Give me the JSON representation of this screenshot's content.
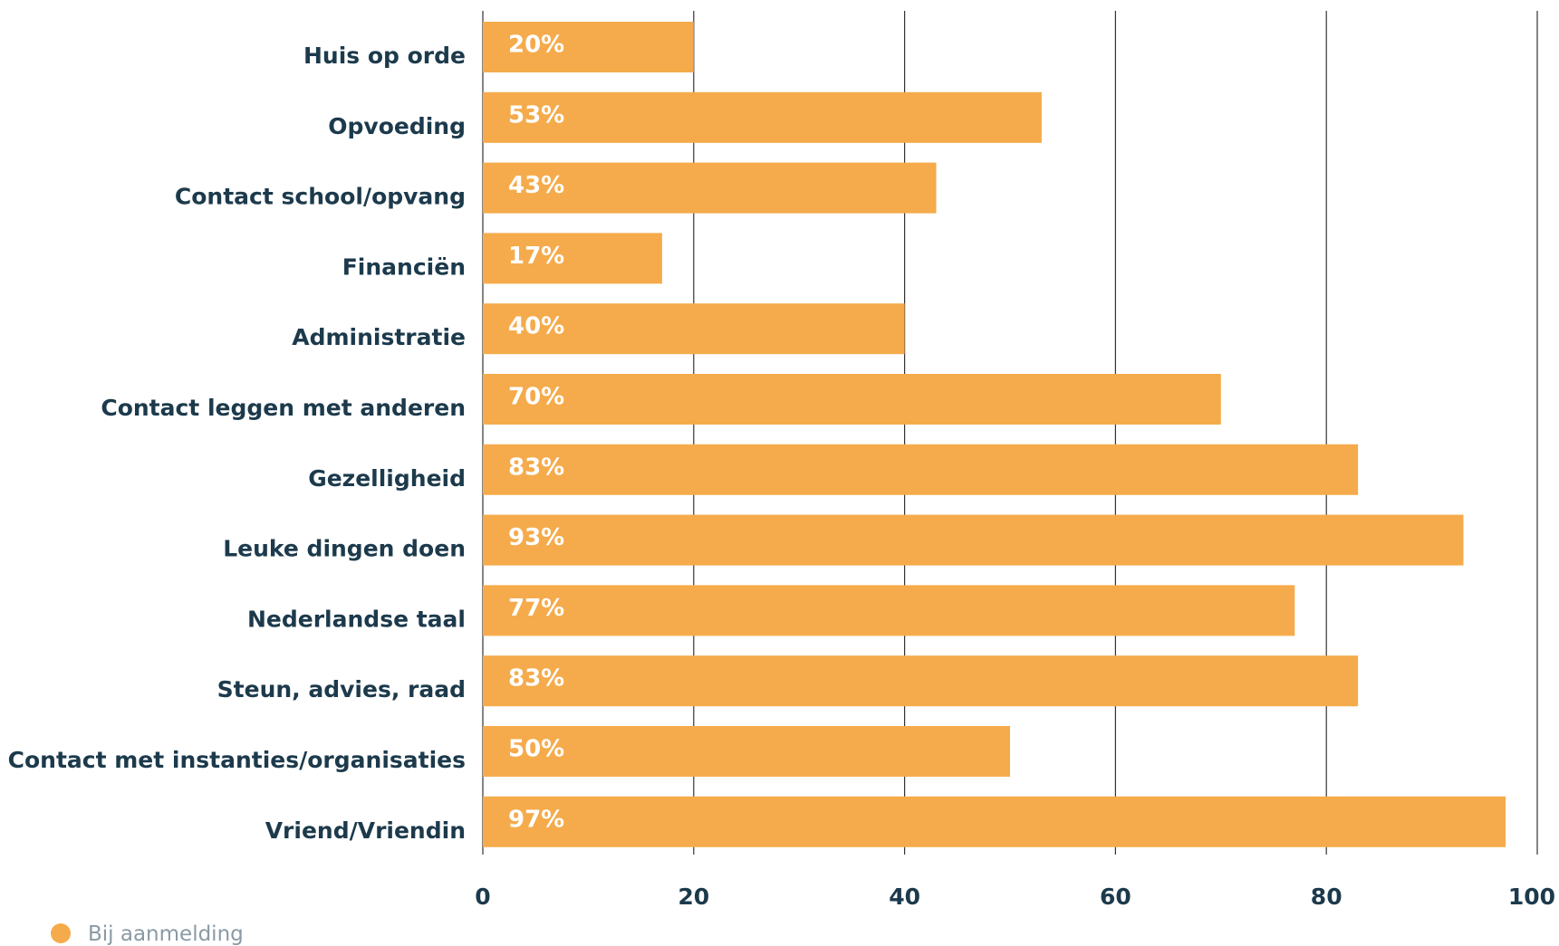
{
  "colors": {
    "bar": "#f5ab4b",
    "label_text": "#1c3a4c",
    "bar_text": "#ffffff",
    "grid": "#333333",
    "legend_text": "#8a9aa4"
  },
  "chart_data": {
    "type": "bar",
    "orientation": "horizontal",
    "categories": [
      "Huis op orde",
      "Opvoeding",
      "Contact school/opvang",
      "Financiën",
      "Administratie",
      "Contact leggen met anderen",
      "Gezelligheid",
      "Leuke dingen doen",
      "Nederlandse taal",
      "Steun, advies, raad",
      "Contact met instanties/organisaties",
      "Vriend/Vriendin"
    ],
    "series": [
      {
        "name": "Bij aanmelding",
        "values": [
          20,
          53,
          43,
          17,
          40,
          70,
          83,
          93,
          77,
          83,
          50,
          97
        ],
        "data_labels": [
          "20%",
          "53%",
          "43%",
          "17%",
          "40%",
          "70%",
          "83%",
          "93%",
          "77%",
          "83%",
          "50%",
          "97%"
        ]
      }
    ],
    "xlim": [
      0,
      100
    ],
    "xticks": [
      "0",
      "20",
      "40",
      "60",
      "80",
      "100"
    ],
    "grid": true,
    "legend_position": "bottom-left"
  }
}
